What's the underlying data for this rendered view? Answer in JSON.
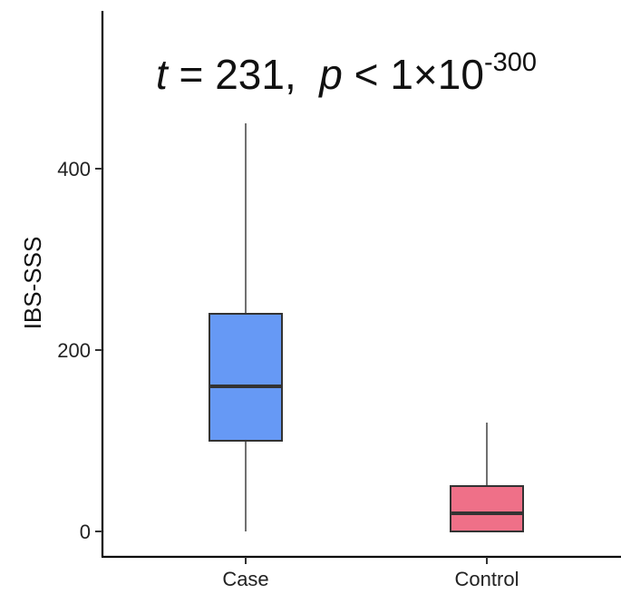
{
  "chart_data": {
    "type": "box",
    "ylabel": "IBS-SSS",
    "xlabel": "",
    "ylim": [
      -28,
      575
    ],
    "yticks": [
      0,
      200,
      400
    ],
    "categories": [
      "Case",
      "Control"
    ],
    "boxes": [
      {
        "category": "Case",
        "min": 0,
        "q1": 100,
        "median": 160,
        "q3": 240,
        "max": 450,
        "color": "#6699F5"
      },
      {
        "category": "Control",
        "min": 0,
        "q1": 0,
        "median": 20,
        "q3": 50,
        "max": 120,
        "color": "#EF7088"
      }
    ],
    "annotation": {
      "t_symbol": "t",
      "t_rest": " = 231,  ",
      "p_symbol": "p",
      "p_rest": " < 1×10",
      "exponent": "-300"
    },
    "grid": false
  }
}
